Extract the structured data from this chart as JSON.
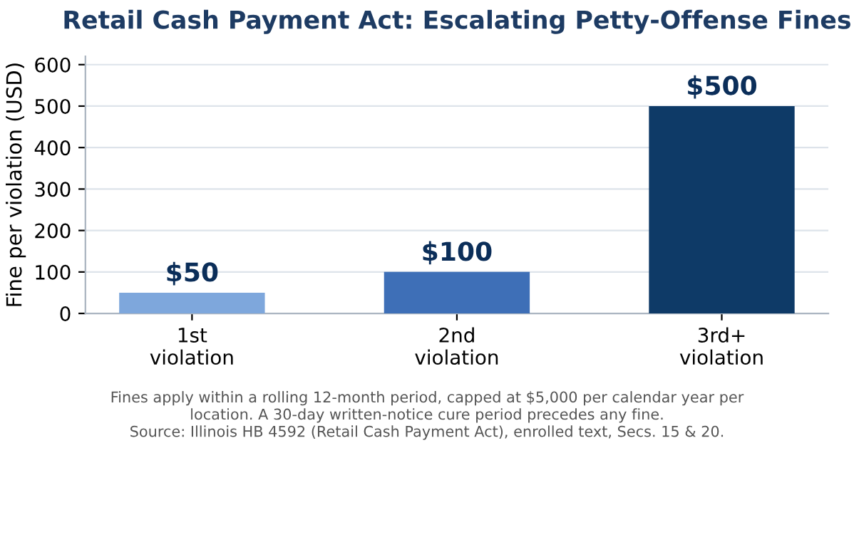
{
  "chart_data": {
    "type": "bar",
    "title": "Retail Cash Payment Act: Escalating Petty-Offense Fines",
    "ylabel": "Fine per violation (USD)",
    "categories": [
      "1st\nviolation",
      "2nd\nviolation",
      "3rd+\nviolation"
    ],
    "values": [
      50,
      100,
      500
    ],
    "colors": [
      "#7ea7dc",
      "#3e6fb7",
      "#0e3a67"
    ],
    "value_labels": [
      "$50",
      "$100",
      "$500"
    ],
    "ylim": [
      0,
      620
    ],
    "yticks": [
      0,
      100,
      200,
      300,
      400,
      500,
      600
    ],
    "grid": "y",
    "annotations": [
      "Fines apply within a rolling 12-month period, capped at $5,000 per calendar year per\nlocation. A 30-day written-notice cure period precedes any fine.\nSource: Illinois HB 4592 (Retail Cash Payment Act), enrolled text, Secs. 15 & 20."
    ]
  }
}
